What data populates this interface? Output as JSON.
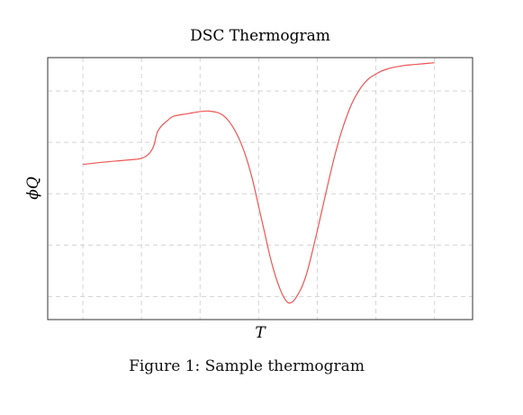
{
  "chart_data": {
    "type": "line",
    "title": "DSC Thermogram",
    "xlabel": "T",
    "ylabel": "ϕQ",
    "xlim": [
      0,
      7.25
    ],
    "ylim": [
      -2.45,
      2.65
    ],
    "x_ticks": [
      0.6,
      1.6,
      2.6,
      3.6,
      4.6,
      5.6,
      6.6
    ],
    "y_ticks": [
      -2,
      -1,
      0,
      1,
      2
    ],
    "tick_labels_shown": false,
    "grid": true,
    "legend": "none",
    "line_color": "#ee5555",
    "series": [
      {
        "x": [
          0.6,
          1.0,
          1.5,
          1.6,
          1.7,
          1.78,
          1.82,
          1.85,
          1.88,
          1.95,
          2.05,
          2.15,
          2.4,
          2.6,
          2.75,
          2.9,
          3.0,
          3.1,
          3.2,
          3.3,
          3.4,
          3.5,
          3.6,
          3.7,
          3.8,
          3.9,
          4.0,
          4.1,
          4.2,
          4.3,
          4.35,
          4.42,
          4.5,
          4.6,
          4.7,
          4.8,
          4.9,
          5.0,
          5.1,
          5.2,
          5.3,
          5.4,
          5.5,
          5.6,
          5.7,
          5.8,
          5.9,
          6.0,
          6.1,
          6.2,
          6.3,
          6.4,
          6.5,
          6.6
        ],
        "y": [
          0.57,
          0.62,
          0.67,
          0.69,
          0.75,
          0.86,
          0.97,
          1.12,
          1.22,
          1.33,
          1.43,
          1.51,
          1.56,
          1.6,
          1.61,
          1.58,
          1.52,
          1.4,
          1.22,
          0.98,
          0.66,
          0.25,
          -0.25,
          -0.75,
          -1.25,
          -1.65,
          -1.95,
          -2.12,
          -2.08,
          -1.9,
          -1.78,
          -1.55,
          -1.2,
          -0.72,
          -0.22,
          0.28,
          0.75,
          1.16,
          1.5,
          1.78,
          1.99,
          2.15,
          2.26,
          2.33,
          2.39,
          2.43,
          2.46,
          2.48,
          2.5,
          2.51,
          2.52,
          2.53,
          2.54,
          2.55
        ]
      }
    ]
  },
  "caption": "Figure 1: Sample thermogram"
}
